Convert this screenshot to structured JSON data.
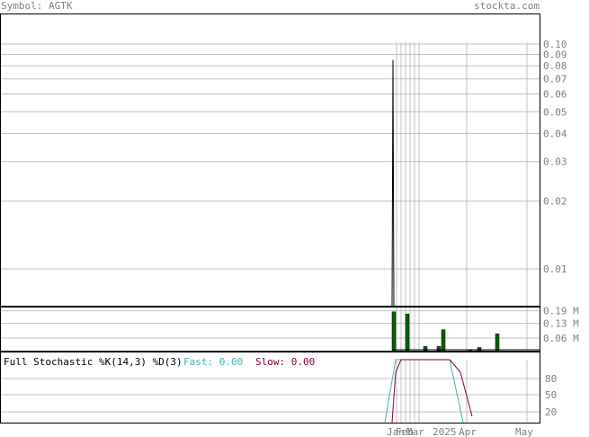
{
  "header": {
    "symbol_label": "Symbol: AGTK",
    "site": "stockta.com"
  },
  "colors": {
    "grid": "#c0c0c0",
    "border": "#000000",
    "volume_bar": "#006400",
    "fast_line": "#3cb4b4",
    "slow_line": "#800040",
    "axis_text": "#808080"
  },
  "chart_data": [
    {
      "type": "line",
      "panel": "price",
      "scale": "log",
      "y_ticks": [
        0.1,
        0.09,
        0.08,
        0.07,
        0.06,
        0.05,
        0.04,
        0.03,
        0.02,
        0.01
      ],
      "y_tick_labels": [
        "0.10",
        "0.09",
        "0.08",
        "0.07",
        "0.06",
        "0.05",
        "0.04",
        "0.03",
        "0.02",
        "0.01"
      ],
      "grid": true,
      "series": [
        {
          "values": [
            0.0008,
            0.085,
            0.0008
          ]
        }
      ]
    },
    {
      "type": "bar",
      "panel": "volume",
      "y_ticks": [
        0.19,
        0.13,
        0.06
      ],
      "y_tick_labels": [
        "0.19 M",
        "0.13 M",
        "0.06 M"
      ],
      "ylim": [
        0,
        0.21
      ],
      "grid": true,
      "values": [
        0.185,
        0.175,
        0.02,
        0.02,
        0.1,
        0.005,
        0.015,
        0.08
      ]
    },
    {
      "type": "line",
      "panel": "stochastic",
      "title": "Full Stochastic %K(14,3) %D(3)",
      "fast_label": "Fast: 0.00",
      "slow_label": "Slow: 0.00",
      "y_ticks": [
        80,
        50,
        20
      ],
      "y_tick_labels": [
        "80",
        "50",
        "20"
      ],
      "ylim": [
        0,
        100
      ],
      "grid": true,
      "series": [
        {
          "values": [
            0,
            100,
            100,
            100,
            100,
            100,
            0
          ]
        },
        {
          "values": [
            0,
            80,
            100,
            100,
            100,
            100,
            80,
            10
          ]
        }
      ]
    }
  ],
  "x_axis": {
    "tick_labels": [
      "Jan",
      "Feb",
      "Mar",
      "2025",
      "Apr",
      "May"
    ]
  }
}
